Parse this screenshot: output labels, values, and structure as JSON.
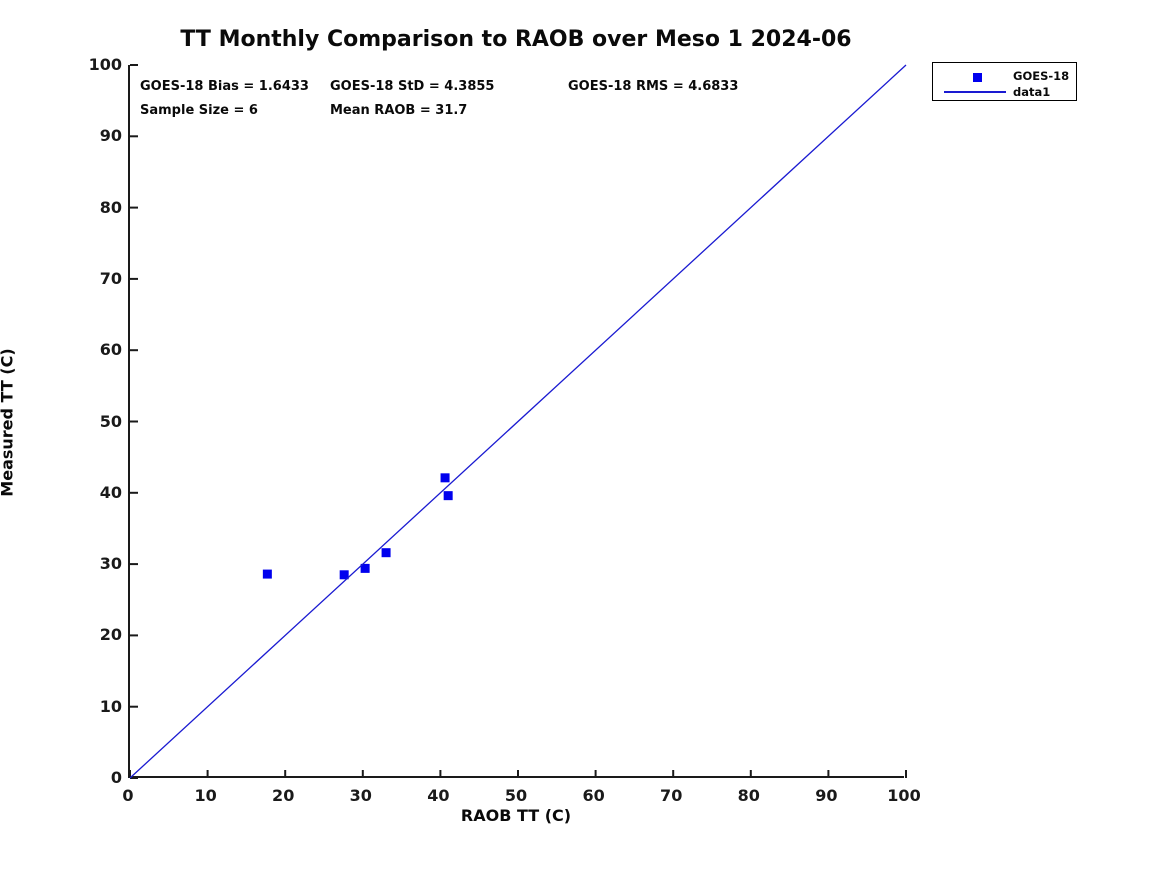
{
  "chart_data": {
    "type": "scatter",
    "title": "TT Monthly Comparison to RAOB over Meso 1 2024-06",
    "xlabel": "RAOB TT (C)",
    "ylabel": "Measured TT (C)",
    "xlim": [
      0,
      100
    ],
    "ylim": [
      0,
      100
    ],
    "x_ticks": [
      0,
      10,
      20,
      30,
      40,
      50,
      60,
      70,
      80,
      90,
      100
    ],
    "y_ticks": [
      0,
      10,
      20,
      30,
      40,
      50,
      60,
      70,
      80,
      90,
      100
    ],
    "grid": false,
    "series": [
      {
        "name": "GOES-18",
        "render": "scatter",
        "marker": "square",
        "color": "#0000ee",
        "points": [
          [
            17.7,
            28.6
          ],
          [
            27.6,
            28.5
          ],
          [
            30.3,
            29.4
          ],
          [
            33.0,
            31.6
          ],
          [
            40.6,
            42.1
          ],
          [
            41.0,
            39.6
          ]
        ]
      },
      {
        "name": "data1",
        "render": "line",
        "color": "#1a1ad1",
        "points": [
          [
            0,
            0
          ],
          [
            100,
            100
          ]
        ]
      }
    ],
    "annotations": {
      "bias": "GOES-18 Bias = 1.6433",
      "std": "GOES-18 StD = 4.3855",
      "rms": "GOES-18 RMS = 4.6833",
      "sample_size": "Sample Size = 6",
      "mean_raob": "Mean RAOB = 31.7"
    },
    "legend": {
      "position": "outside-top-right",
      "entries": [
        {
          "label": "GOES-18",
          "swatch": "marker"
        },
        {
          "label": "data1",
          "swatch": "line"
        }
      ]
    },
    "stats_values": {
      "bias": 1.6433,
      "std": 4.3855,
      "rms": 4.6833,
      "sample_size": 6,
      "mean_raob": 31.7
    }
  },
  "colors": {
    "marker": "#0000ee",
    "line": "#1a1ad1",
    "axis": "#1a1a1a",
    "text": "#0a0a0a",
    "background": "#ffffff"
  }
}
